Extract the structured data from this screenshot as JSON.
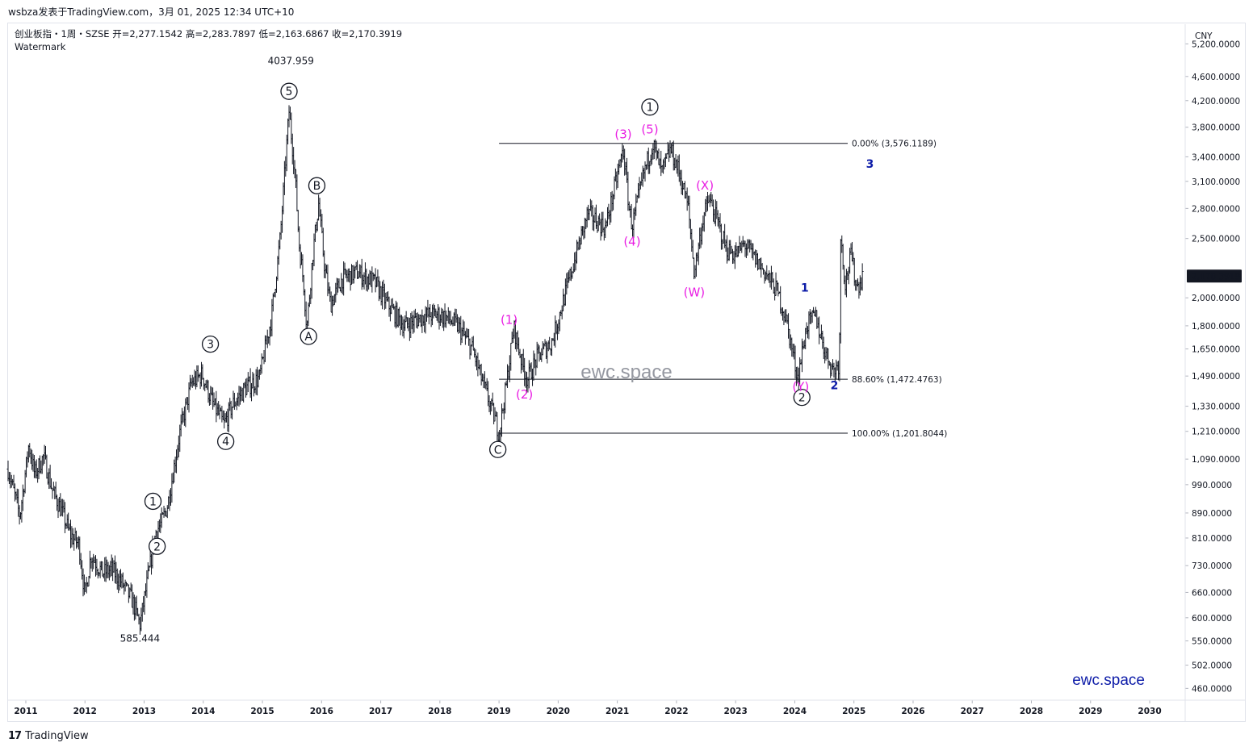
{
  "header": {
    "publish_line": "wsbza发表于TradingView.com，3月 01, 2025 12:34 UTC+10",
    "symbol_line": "创业板指・1周・SZSE  开=2,277.1542  高=2,283.7897  低=2,163.6867  收=2,170.3919",
    "indicator": "Watermark"
  },
  "footer": {
    "logo_mark": "17",
    "brand": "TradingView"
  },
  "watermarks": {
    "center": "ewc.space",
    "corner": "ewc.space"
  },
  "colors": {
    "candles": "#131722",
    "wave_black": "#131722",
    "wave_magenta": "#e91ee3",
    "wave_blue": "#0d1ca8",
    "fib_line": "#131722",
    "grid_border": "#e0e3eb",
    "price_tag_bg": "#131722"
  },
  "chart_data": {
    "type": "bar",
    "chart_style": "weekly OHLC bars",
    "currency": "CNY",
    "scale": "log",
    "ylim": [
      440,
      5600
    ],
    "xlim": [
      2010.7,
      2030.6
    ],
    "y_ticks": [
      {
        "v": 460,
        "label": "460.0000"
      },
      {
        "v": 502,
        "label": "502.0000"
      },
      {
        "v": 550,
        "label": "550.0000"
      },
      {
        "v": 600,
        "label": "600.0000"
      },
      {
        "v": 660,
        "label": "660.0000"
      },
      {
        "v": 730,
        "label": "730.0000"
      },
      {
        "v": 810,
        "label": "810.0000"
      },
      {
        "v": 890,
        "label": "890.0000"
      },
      {
        "v": 990,
        "label": "990.0000"
      },
      {
        "v": 1090,
        "label": "1,090.0000"
      },
      {
        "v": 1210,
        "label": "1,210.0000"
      },
      {
        "v": 1330,
        "label": "1,330.0000"
      },
      {
        "v": 1490,
        "label": "1,490.0000"
      },
      {
        "v": 1650,
        "label": "1,650.0000"
      },
      {
        "v": 1800,
        "label": "1,800.0000"
      },
      {
        "v": 2000,
        "label": "2,000.0000"
      },
      {
        "v": 2500,
        "label": "2,500.0000"
      },
      {
        "v": 2800,
        "label": "2,800.0000"
      },
      {
        "v": 3100,
        "label": "3,100.0000"
      },
      {
        "v": 3400,
        "label": "3,400.0000"
      },
      {
        "v": 3800,
        "label": "3,800.0000"
      },
      {
        "v": 4200,
        "label": "4,200.0000"
      },
      {
        "v": 4600,
        "label": "4,600.0000"
      },
      {
        "v": 5200,
        "label": "5,200.0000"
      }
    ],
    "x_ticks": [
      "2011",
      "2012",
      "2013",
      "2014",
      "2015",
      "2016",
      "2017",
      "2018",
      "2019",
      "2020",
      "2021",
      "2022",
      "2023",
      "2024",
      "2025",
      "2026",
      "2027",
      "2028",
      "2029",
      "2030"
    ],
    "last_price": {
      "value": 2170.3919,
      "label": "2,170.3919"
    },
    "price_path": [
      [
        2010.7,
        1050
      ],
      [
        2010.9,
        880
      ],
      [
        2011.05,
        1150
      ],
      [
        2011.15,
        1030
      ],
      [
        2011.3,
        1100
      ],
      [
        2011.45,
        970
      ],
      [
        2011.6,
        900
      ],
      [
        2011.75,
        820
      ],
      [
        2011.9,
        790
      ],
      [
        2012.0,
        650
      ],
      [
        2012.1,
        760
      ],
      [
        2012.3,
        710
      ],
      [
        2012.45,
        720
      ],
      [
        2012.6,
        690
      ],
      [
        2012.8,
        640
      ],
      [
        2012.93,
        585
      ],
      [
        2013.1,
        730
      ],
      [
        2013.2,
        830
      ],
      [
        2013.3,
        860
      ],
      [
        2013.4,
        920
      ],
      [
        2013.6,
        1200
      ],
      [
        2013.8,
        1450
      ],
      [
        2013.98,
        1500
      ],
      [
        2014.15,
        1350
      ],
      [
        2014.35,
        1240
      ],
      [
        2014.5,
        1340
      ],
      [
        2014.7,
        1420
      ],
      [
        2014.95,
        1480
      ],
      [
        2015.15,
        1850
      ],
      [
        2015.3,
        2500
      ],
      [
        2015.45,
        4037
      ],
      [
        2015.55,
        3200
      ],
      [
        2015.62,
        2450
      ],
      [
        2015.7,
        2100
      ],
      [
        2015.75,
        1780
      ],
      [
        2015.85,
        2350
      ],
      [
        2015.95,
        2850
      ],
      [
        2016.05,
        2250
      ],
      [
        2016.15,
        1950
      ],
      [
        2016.35,
        2150
      ],
      [
        2016.6,
        2200
      ],
      [
        2016.9,
        2120
      ],
      [
        2017.1,
        1960
      ],
      [
        2017.4,
        1800
      ],
      [
        2017.55,
        1830
      ],
      [
        2017.75,
        1870
      ],
      [
        2017.95,
        1880
      ],
      [
        2018.1,
        1860
      ],
      [
        2018.3,
        1800
      ],
      [
        2018.55,
        1650
      ],
      [
        2018.7,
        1480
      ],
      [
        2018.95,
        1250
      ],
      [
        2019.0,
        1201
      ],
      [
        2019.12,
        1430
      ],
      [
        2019.25,
        1790
      ],
      [
        2019.4,
        1550
      ],
      [
        2019.48,
        1470
      ],
      [
        2019.65,
        1600
      ],
      [
        2019.9,
        1700
      ],
      [
        2020.1,
        2000
      ],
      [
        2020.3,
        2350
      ],
      [
        2020.5,
        2750
      ],
      [
        2020.8,
        2600
      ],
      [
        2021.1,
        3500
      ],
      [
        2021.2,
        2800
      ],
      [
        2021.25,
        2620
      ],
      [
        2021.45,
        3200
      ],
      [
        2021.6,
        3576
      ],
      [
        2021.75,
        3200
      ],
      [
        2021.9,
        3500
      ],
      [
        2022.05,
        3200
      ],
      [
        2022.2,
        2800
      ],
      [
        2022.3,
        2200
      ],
      [
        2022.45,
        2700
      ],
      [
        2022.55,
        2900
      ],
      [
        2022.7,
        2650
      ],
      [
        2022.85,
        2400
      ],
      [
        2023.0,
        2350
      ],
      [
        2023.15,
        2450
      ],
      [
        2023.35,
        2300
      ],
      [
        2023.5,
        2200
      ],
      [
        2023.7,
        2050
      ],
      [
        2023.85,
        1850
      ],
      [
        2024.05,
        1480
      ],
      [
        2024.2,
        1800
      ],
      [
        2024.35,
        1870
      ],
      [
        2024.5,
        1650
      ],
      [
        2024.65,
        1520
      ],
      [
        2024.75,
        1560
      ],
      [
        2024.78,
        2570
      ],
      [
        2024.85,
        2100
      ],
      [
        2024.95,
        2350
      ],
      [
        2025.05,
        2080
      ],
      [
        2025.15,
        2170
      ]
    ],
    "fib_levels": [
      {
        "label": "0.00% (3,576.1189)",
        "value": 3576.1189,
        "from_x": 2019.0
      },
      {
        "label": "88.60% (1,472.4763)",
        "value": 1472.4763,
        "from_x": 2019.0
      },
      {
        "label": "100.00% (1,201.8044)",
        "value": 1201.8044,
        "from_x": 2019.0
      }
    ],
    "annotations": [
      {
        "text": "4037.959",
        "x": 2015.48,
        "y": 4880,
        "style": "text"
      },
      {
        "text": "585.444",
        "x": 2012.93,
        "y": 555,
        "style": "text"
      },
      {
        "text": "5",
        "x": 2015.45,
        "y": 4350,
        "style": "circle"
      },
      {
        "text": "1",
        "x": 2013.15,
        "y": 930,
        "style": "circle"
      },
      {
        "text": "2",
        "x": 2013.22,
        "y": 785,
        "style": "circle"
      },
      {
        "text": "3",
        "x": 2014.12,
        "y": 1680,
        "style": "circle"
      },
      {
        "text": "4",
        "x": 2014.38,
        "y": 1165,
        "style": "circle"
      },
      {
        "text": "A",
        "x": 2015.78,
        "y": 1730,
        "style": "circle"
      },
      {
        "text": "B",
        "x": 2015.92,
        "y": 3050,
        "style": "circle"
      },
      {
        "text": "C",
        "x": 2018.98,
        "y": 1130,
        "style": "circle"
      },
      {
        "text": "1",
        "x": 2021.55,
        "y": 4100,
        "style": "circle"
      },
      {
        "text": "2",
        "x": 2024.12,
        "y": 1375,
        "style": "circle"
      },
      {
        "text": "(1)",
        "x": 2019.17,
        "y": 1840,
        "style": "magenta"
      },
      {
        "text": "(2)",
        "x": 2019.43,
        "y": 1390,
        "style": "magenta"
      },
      {
        "text": "(3)",
        "x": 2021.1,
        "y": 3700,
        "style": "magenta"
      },
      {
        "text": "(4)",
        "x": 2021.25,
        "y": 2470,
        "style": "magenta"
      },
      {
        "text": "(5)",
        "x": 2021.55,
        "y": 3770,
        "style": "magenta"
      },
      {
        "text": "(W)",
        "x": 2022.3,
        "y": 2040,
        "style": "magenta"
      },
      {
        "text": "(X)",
        "x": 2022.48,
        "y": 3050,
        "style": "magenta"
      },
      {
        "text": "(Y)",
        "x": 2024.1,
        "y": 1430,
        "style": "magenta"
      },
      {
        "text": "1",
        "x": 2024.17,
        "y": 2080,
        "style": "blue"
      },
      {
        "text": "2",
        "x": 2024.67,
        "y": 1440,
        "style": "blue"
      },
      {
        "text": "3",
        "x": 2025.27,
        "y": 3310,
        "style": "blue"
      }
    ]
  }
}
